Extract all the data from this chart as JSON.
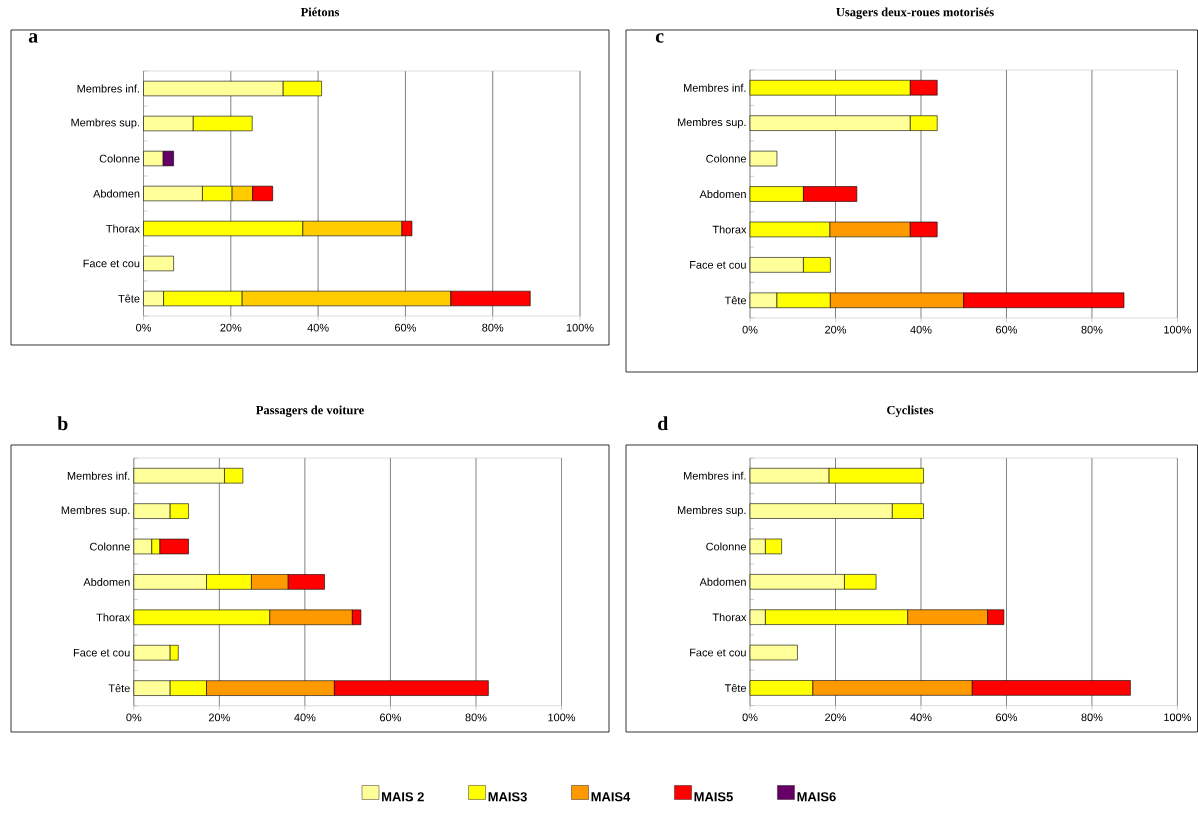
{
  "chart_data": [
    {
      "type": "bar",
      "orientation": "horizontal",
      "stacked": true,
      "title": "Piétons",
      "annotations": [
        "a"
      ],
      "categories": [
        "Membres inf.",
        "Membres sup.",
        "Colonne",
        "Abdomen",
        "Thorax",
        "Face et cou",
        "Tête"
      ],
      "xlim": [
        0,
        100
      ],
      "xticks": [
        {
          "value": 0,
          "label": "0%"
        },
        {
          "value": 20,
          "label": "20%"
        },
        {
          "value": 40,
          "label": "40%"
        },
        {
          "value": 60,
          "label": "60%"
        },
        {
          "value": 80,
          "label": "80%"
        },
        {
          "value": 100,
          "label": "100%"
        }
      ],
      "grid": "x",
      "series": [
        {
          "color": "#ffff99",
          "values": [
            32,
            11.4,
            4.5,
            13.5,
            null,
            6.9,
            4.6
          ]
        },
        {
          "color": "#ffff00",
          "values": [
            8.8,
            13.5,
            null,
            6.8,
            36.5,
            null,
            18
          ]
        },
        {
          "color": "#ffcc00",
          "values": [
            null,
            null,
            null,
            4.7,
            22.7,
            null,
            47.8
          ]
        },
        {
          "color": "#ff0000",
          "values": [
            null,
            null,
            null,
            4.6,
            2.3,
            null,
            18.2
          ]
        },
        {
          "color": "#660066",
          "values": [
            null,
            null,
            2.4,
            null,
            null,
            null,
            null
          ]
        }
      ]
    },
    {
      "type": "bar",
      "orientation": "horizontal",
      "stacked": true,
      "title": "Usagers deux-roues motorisés",
      "annotations": [
        "c"
      ],
      "categories": [
        "Membres inf.",
        "Membres sup.",
        "Colonne",
        "Abdomen",
        "Thorax",
        "Face et cou",
        "Tête"
      ],
      "xlim": [
        0,
        100
      ],
      "xticks": [
        {
          "value": 0,
          "label": "0%"
        },
        {
          "value": 20,
          "label": "20%"
        },
        {
          "value": 40,
          "label": "40%"
        },
        {
          "value": 60,
          "label": "60%"
        },
        {
          "value": 80,
          "label": "80%"
        },
        {
          "value": 100,
          "label": "100%"
        }
      ],
      "grid": "x",
      "series": [
        {
          "color": "#ffff99",
          "values": [
            null,
            37.5,
            6.3,
            null,
            null,
            12.5,
            6.3
          ]
        },
        {
          "color": "#ffff00",
          "values": [
            37.5,
            6.3,
            null,
            12.5,
            18.7,
            6.3,
            12.5
          ]
        },
        {
          "color": "#ff9900",
          "values": [
            null,
            null,
            null,
            null,
            18.8,
            null,
            31.2
          ]
        },
        {
          "color": "#ff0000",
          "values": [
            6.3,
            null,
            null,
            12.5,
            6.3,
            null,
            37.5
          ]
        }
      ]
    },
    {
      "type": "bar",
      "orientation": "horizontal",
      "stacked": true,
      "title": "Passagers de voiture",
      "annotations": [
        "b"
      ],
      "categories": [
        "Membres inf.",
        "Membres sup.",
        "Colonne",
        "Abdomen",
        "Thorax",
        "Face et cou",
        "Tête"
      ],
      "xlim": [
        0,
        100
      ],
      "xticks": [
        {
          "value": 0,
          "label": "0%"
        },
        {
          "value": 20,
          "label": "20%"
        },
        {
          "value": 40,
          "label": "40%"
        },
        {
          "value": 60,
          "label": "60%"
        },
        {
          "value": 80,
          "label": "80%"
        },
        {
          "value": 100,
          "label": "100%"
        }
      ],
      "grid": "x",
      "legend": "bottom",
      "series": [
        {
          "name": "MAIS 2",
          "color": "#ffff99",
          "values": [
            21.2,
            8.5,
            4.2,
            17,
            null,
            8.5,
            8.5
          ]
        },
        {
          "name": "MAIS3",
          "color": "#ffff00",
          "values": [
            4.3,
            4.3,
            1.9,
            10.5,
            31.8,
            1.9,
            8.5
          ]
        },
        {
          "name": "MAIS4",
          "color": "#ff9900",
          "values": [
            null,
            null,
            null,
            8.6,
            19.3,
            null,
            29.9
          ]
        },
        {
          "name": "MAIS5",
          "color": "#ff0000",
          "values": [
            null,
            null,
            6.7,
            8.5,
            2,
            null,
            36
          ]
        },
        {
          "name": "MAIS6",
          "color": "#660066",
          "values": [
            null,
            null,
            null,
            null,
            null,
            null,
            null
          ]
        }
      ]
    },
    {
      "type": "bar",
      "orientation": "horizontal",
      "stacked": true,
      "title": "Cyclistes",
      "annotations": [
        "d"
      ],
      "categories": [
        "Membres inf.",
        "Membres sup.",
        "Colonne",
        "Abdomen",
        "Thorax",
        "Face et cou",
        "Tête"
      ],
      "xlim": [
        0,
        100
      ],
      "xticks": [
        {
          "value": 0,
          "label": "0%"
        },
        {
          "value": 20,
          "label": "20%"
        },
        {
          "value": 40,
          "label": "40%"
        },
        {
          "value": 60,
          "label": "60%"
        },
        {
          "value": 80,
          "label": "80%"
        },
        {
          "value": 100,
          "label": "100%"
        }
      ],
      "grid": "x",
      "series": [
        {
          "color": "#ffff99",
          "values": [
            18.5,
            33.3,
            3.6,
            22.1,
            3.6,
            11.1,
            null
          ]
        },
        {
          "color": "#ffff00",
          "values": [
            22.1,
            7.3,
            3.8,
            7.4,
            33.3,
            null,
            14.7
          ]
        },
        {
          "color": "#ff9900",
          "values": [
            null,
            null,
            null,
            null,
            18.7,
            null,
            37.3
          ]
        },
        {
          "color": "#ff0000",
          "values": [
            null,
            null,
            null,
            null,
            3.8,
            null,
            37
          ]
        }
      ]
    }
  ]
}
